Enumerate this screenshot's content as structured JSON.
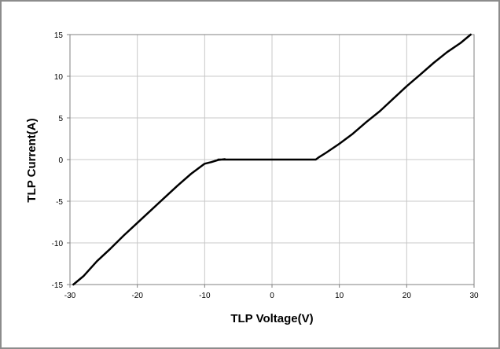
{
  "chart_data": {
    "type": "line",
    "title": "",
    "xlabel": "TLP Voltage(V)",
    "ylabel": "TLP Current(A)",
    "xlim": [
      -30,
      30
    ],
    "ylim": [
      -15,
      15
    ],
    "xticks": [
      -30,
      -20,
      -10,
      0,
      10,
      20,
      30
    ],
    "yticks": [
      -15,
      -10,
      -5,
      0,
      5,
      10,
      15
    ],
    "grid": true,
    "legend": "none",
    "series": [
      {
        "color": "#000000",
        "x": [
          -29.5,
          -28,
          -26,
          -24,
          -22,
          -20,
          -18,
          -16,
          -14,
          -12,
          -10,
          -9,
          -8,
          -7.5,
          -7,
          -7.5,
          -8,
          -6,
          -4,
          -2,
          0,
          2,
          4,
          6,
          6.5,
          7,
          8,
          10,
          12,
          14,
          16,
          18,
          20,
          22,
          24,
          26,
          28,
          29.5
        ],
        "y": [
          -15,
          -14,
          -12.2,
          -10.7,
          -9.1,
          -7.6,
          -6.1,
          -4.6,
          -3.1,
          -1.7,
          -0.5,
          -0.3,
          -0.05,
          0,
          0.05,
          0,
          0,
          0,
          0,
          0,
          0,
          0,
          0,
          0,
          0,
          0.3,
          0.8,
          1.9,
          3.1,
          4.5,
          5.8,
          7.3,
          8.8,
          10.2,
          11.6,
          12.9,
          14.0,
          15.0
        ]
      }
    ]
  }
}
